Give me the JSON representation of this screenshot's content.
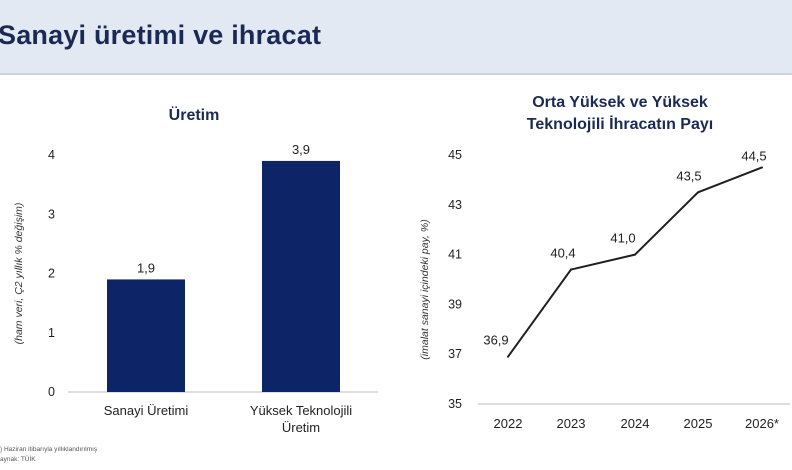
{
  "page": {
    "title": "Sanayi üretimi ve ihracat",
    "footnote_1": ") Haziran itibarıyla yıllıklandırılmış",
    "footnote_2": "aynak: TÜİK"
  },
  "colors": {
    "bar": "#0d2466",
    "line": "#1f1f1f",
    "header_bg": "#e3e9f3"
  },
  "chart_data": [
    {
      "type": "bar",
      "title": "Üretim",
      "ylabel": "(ham veri, Ç2 yıllık % değişim)",
      "categories": [
        "Sanayi Üretimi",
        "Yüksek Teknolojili Üretim"
      ],
      "category_lines": [
        [
          "Sanayi Üretimi"
        ],
        [
          "Yüksek Teknolojili",
          "Üretim"
        ]
      ],
      "values": [
        1.9,
        3.9
      ],
      "data_labels": [
        "1,9",
        "3,9"
      ],
      "ylim": [
        0,
        4
      ],
      "yticks": [
        0,
        1,
        2,
        3,
        4
      ],
      "ytick_labels": [
        "0",
        "1",
        "2",
        "3",
        "4"
      ],
      "grid": false
    },
    {
      "type": "line",
      "title": "Orta Yüksek ve Yüksek Teknolojili İhracatın Payı",
      "title_lines": [
        "Orta Yüksek ve Yüksek",
        "Teknolojili İhracatın Payı"
      ],
      "ylabel": "(imalat sanayi içindeki pay, %)",
      "x": [
        "2022",
        "2023",
        "2024",
        "2025",
        "2026*"
      ],
      "values": [
        36.9,
        40.4,
        41.0,
        43.5,
        44.5
      ],
      "data_labels": [
        "36,9",
        "40,4",
        "41,0",
        "43,5",
        "44,5"
      ],
      "ylim": [
        35,
        45
      ],
      "yticks": [
        35,
        37,
        39,
        41,
        43,
        45
      ],
      "ytick_labels": [
        "35",
        "37",
        "39",
        "41",
        "43",
        "45"
      ],
      "grid": false
    }
  ]
}
